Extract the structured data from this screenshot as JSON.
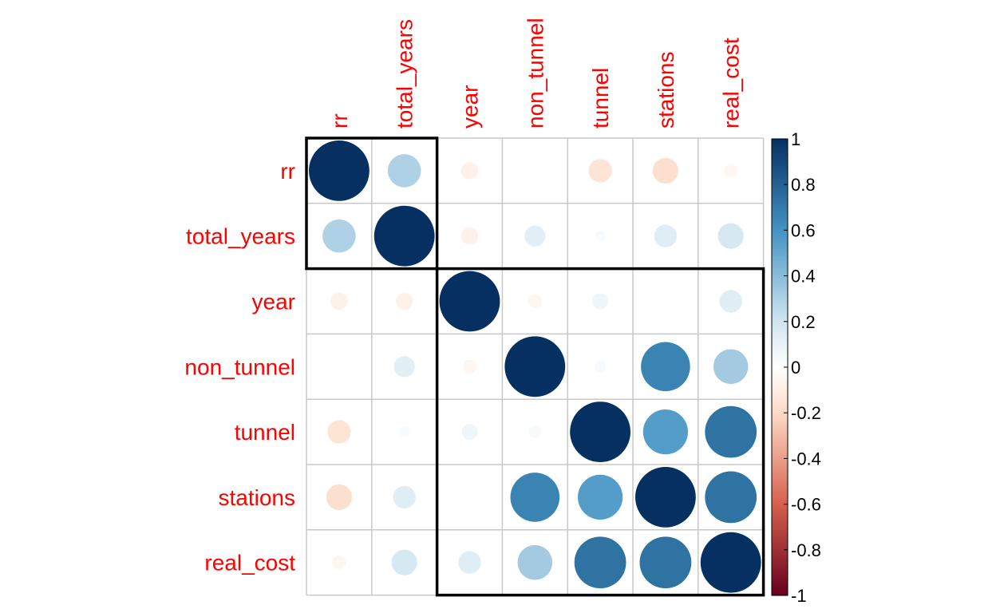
{
  "chart_data": {
    "type": "heatmap",
    "variables": [
      "rr",
      "total_years",
      "year",
      "non_tunnel",
      "tunnel",
      "stations",
      "real_cost"
    ],
    "matrix": [
      [
        1.0,
        0.3,
        -0.08,
        0.01,
        -0.15,
        -0.18,
        -0.05
      ],
      [
        0.3,
        1.0,
        -0.08,
        0.12,
        0.03,
        0.14,
        0.18
      ],
      [
        -0.08,
        -0.08,
        1.0,
        -0.05,
        0.07,
        0.01,
        0.14
      ],
      [
        0.01,
        0.12,
        -0.05,
        1.0,
        0.04,
        0.66,
        0.33
      ],
      [
        -0.15,
        0.03,
        0.07,
        0.04,
        1.0,
        0.55,
        0.73
      ],
      [
        -0.18,
        0.14,
        0.01,
        0.66,
        0.55,
        1.0,
        0.73
      ],
      [
        -0.05,
        0.18,
        0.14,
        0.33,
        0.73,
        0.73,
        1.0
      ]
    ],
    "clusters": [
      [
        0,
        1
      ],
      [
        2,
        6
      ]
    ],
    "colorbar": {
      "range": [
        -1,
        1
      ],
      "ticks": [
        "1",
        "0.8",
        "0.6",
        "0.4",
        "0.2",
        "0",
        "-0.2",
        "-0.4",
        "-0.6",
        "-0.8",
        "-1"
      ]
    },
    "colors": {
      "negative_end": "#67001F",
      "neg_mid": "#D6604D",
      "neg_light": "#FDDBC7",
      "zero": "#FFFFFF",
      "pos_light": "#D1E5F0",
      "pos_mid": "#4393C3",
      "positive_end": "#053061",
      "label": "#FF0000",
      "grid": "#C8C8C8"
    }
  }
}
